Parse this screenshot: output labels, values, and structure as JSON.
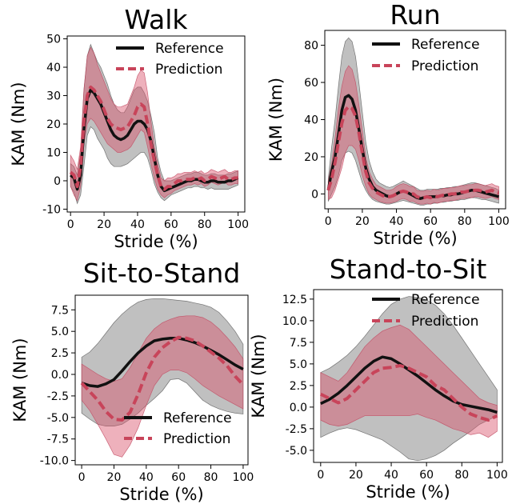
{
  "colors": {
    "reference": "#111111",
    "prediction": "#c8445a",
    "reference_band": "#8c8c8c",
    "prediction_band": "#d9536b"
  },
  "chart_data": [
    {
      "type": "line",
      "title": "Walk",
      "xlabel": "Stride (%)",
      "ylabel": "KAM (Nm)",
      "xlim": [
        -2,
        104
      ],
      "ylim": [
        -11,
        51
      ],
      "xticks": [
        0,
        20,
        40,
        60,
        80,
        100
      ],
      "yticks": [
        -10,
        0,
        10,
        20,
        30,
        40,
        50
      ],
      "legend_position": "top-right",
      "x": [
        0,
        2,
        4,
        6,
        8,
        10,
        12,
        14,
        16,
        18,
        20,
        22,
        24,
        26,
        28,
        30,
        32,
        34,
        36,
        38,
        40,
        42,
        44,
        46,
        48,
        50,
        52,
        54,
        56,
        58,
        60,
        62,
        64,
        66,
        68,
        70,
        72,
        74,
        76,
        78,
        80,
        82,
        84,
        86,
        88,
        90,
        92,
        94,
        96,
        98,
        100
      ],
      "series": [
        {
          "name": "Reference",
          "values": [
            2,
            1,
            -3,
            2,
            18,
            29,
            32,
            31,
            29,
            27,
            24,
            21,
            18,
            16,
            15,
            14.5,
            15,
            16,
            18,
            20,
            21,
            21,
            20,
            18,
            14,
            8,
            2,
            -2,
            -3.5,
            -3,
            -2.5,
            -2,
            -1.5,
            -1,
            -0.5,
            0,
            0,
            0.5,
            0.5,
            0,
            -0.5,
            -0.5,
            0,
            0,
            -0.5,
            -0.5,
            -0.5,
            0,
            0,
            0.5,
            1
          ],
          "lower": [
            -2,
            -4,
            -8,
            -5,
            5,
            16,
            19,
            18,
            15,
            13,
            11,
            8,
            6,
            5,
            5,
            5,
            5.5,
            6,
            7,
            8,
            9,
            10,
            10,
            8,
            4,
            -1,
            -4,
            -6,
            -7,
            -6,
            -5,
            -4.5,
            -4,
            -3.5,
            -3,
            -2.5,
            -2.5,
            -2,
            -2,
            -2.5,
            -2.5,
            -3,
            -2.5,
            -3,
            -3,
            -3,
            -3,
            -3,
            -2.5,
            -2,
            -1.5
          ],
          "upper": [
            6,
            5,
            2,
            10,
            32,
            44,
            48,
            45,
            42,
            40,
            37,
            34,
            30,
            27,
            25,
            24,
            24,
            26,
            29,
            32,
            33,
            33,
            31,
            28,
            23,
            17,
            8,
            3,
            0,
            0,
            0,
            0.5,
            1,
            1.5,
            2,
            2.5,
            2.5,
            3,
            3,
            2.5,
            2,
            2,
            2.5,
            2.5,
            2,
            2,
            2,
            2.5,
            2.5,
            3,
            3.5
          ]
        },
        {
          "name": "Prediction",
          "values": [
            3,
            2,
            -2,
            5,
            21,
            30,
            33,
            32,
            30,
            28,
            25,
            22,
            20,
            19,
            18.5,
            18,
            18.5,
            19,
            21,
            23,
            26,
            27,
            26,
            20,
            13,
            7,
            2,
            -2,
            -3,
            -2,
            -2,
            -1,
            0,
            0,
            0.5,
            0.5,
            0.5,
            1,
            0.5,
            1,
            0,
            0.5,
            1.5,
            1,
            0.5,
            1,
            1.5,
            0.5,
            0.5,
            1,
            1
          ],
          "lower": [
            -2,
            -5,
            -7,
            -2,
            13,
            20,
            22,
            21,
            19,
            17,
            15,
            13,
            12,
            11,
            10,
            10,
            10.5,
            11,
            12,
            14,
            16,
            18,
            17,
            12,
            6,
            1,
            -3,
            -5,
            -6,
            -5,
            -4.5,
            -3.5,
            -3,
            -2.5,
            -2,
            -1.5,
            -1.5,
            -1,
            -1.5,
            -1,
            -2,
            -1.5,
            -0.5,
            -1,
            -1.5,
            -1,
            -0.5,
            -1.5,
            -1.5,
            -1,
            -1
          ],
          "upper": [
            9,
            7,
            4,
            12,
            32,
            44,
            47,
            45,
            41,
            38,
            35,
            32,
            29,
            27,
            26,
            26,
            26.5,
            27,
            30,
            33,
            37,
            39,
            38,
            31,
            21,
            12,
            6,
            1,
            0,
            1,
            1,
            1.5,
            2.5,
            2.5,
            3,
            3,
            3,
            3.5,
            3,
            3.5,
            2.5,
            3,
            4,
            3.5,
            3,
            3.5,
            4,
            3,
            3,
            3.5,
            3.5
          ]
        }
      ]
    },
    {
      "type": "line",
      "title": "Run",
      "xlabel": "Stride (%)",
      "ylabel": "KAM (Nm)",
      "xlim": [
        -2,
        104
      ],
      "ylim": [
        -8,
        88
      ],
      "xticks": [
        0,
        20,
        40,
        60,
        80,
        100
      ],
      "yticks": [
        0,
        20,
        40,
        60,
        80
      ],
      "legend_position": "top-right",
      "x": [
        0,
        2,
        4,
        6,
        8,
        10,
        12,
        14,
        16,
        18,
        20,
        22,
        24,
        26,
        28,
        30,
        32,
        34,
        36,
        38,
        40,
        42,
        44,
        46,
        48,
        50,
        52,
        54,
        56,
        58,
        60,
        62,
        64,
        66,
        68,
        70,
        72,
        74,
        76,
        78,
        80,
        82,
        84,
        86,
        88,
        90,
        92,
        94,
        96,
        98,
        100
      ],
      "series": [
        {
          "name": "Reference",
          "values": [
            2,
            12,
            20,
            32,
            45,
            52,
            53,
            51,
            45,
            35,
            24,
            14,
            8,
            4,
            2,
            1,
            0,
            -1,
            -1.5,
            -1,
            0,
            1,
            1.5,
            1,
            0,
            -1,
            -2,
            -2.5,
            -2,
            -1.5,
            -1.5,
            -1.5,
            -1.5,
            -1,
            -1,
            -0.5,
            -0.5,
            0,
            0,
            0.5,
            1,
            1.5,
            2,
            2,
            1.5,
            1,
            0.5,
            0,
            -0.5,
            -1,
            -1.5
          ],
          "lower": [
            -4,
            0,
            4,
            10,
            18,
            22,
            23,
            22,
            18,
            12,
            6,
            2,
            -1,
            -3,
            -4,
            -4.5,
            -5,
            -5.5,
            -5.5,
            -5,
            -4.5,
            -4,
            -3.5,
            -4,
            -4.5,
            -5,
            -5.5,
            -6,
            -6,
            -5.5,
            -5.5,
            -5,
            -5,
            -4.5,
            -4.5,
            -4,
            -4,
            -3.5,
            -3.5,
            -3,
            -3,
            -2.5,
            -2,
            -2,
            -2.5,
            -3,
            -3,
            -3.5,
            -4,
            -4.5,
            -5
          ],
          "upper": [
            8,
            25,
            40,
            58,
            74,
            82,
            84,
            82,
            74,
            60,
            44,
            28,
            18,
            12,
            8,
            6,
            5,
            4,
            3.5,
            4,
            5,
            6,
            7,
            6,
            5,
            4,
            3,
            2,
            2,
            2.5,
            2.5,
            2.5,
            2.5,
            3,
            3,
            3.5,
            3.5,
            4,
            4,
            4.5,
            5,
            5.5,
            6,
            6,
            5.5,
            5,
            4.5,
            4,
            3.5,
            3,
            2
          ]
        },
        {
          "name": "Prediction",
          "values": [
            2,
            8,
            17,
            28,
            38,
            45,
            47,
            46,
            42,
            33,
            22,
            12,
            6,
            3,
            1,
            0,
            -1,
            -1.5,
            -1.5,
            -1,
            0,
            1,
            1.5,
            1,
            0,
            0,
            -1.5,
            -2,
            -2,
            -1.5,
            -2,
            -1,
            -1.5,
            -1,
            -0.5,
            -0.5,
            0,
            0,
            0.5,
            1,
            1,
            1.5,
            1.5,
            2,
            2,
            1.5,
            1,
            1.5,
            2,
            1,
            0.5
          ],
          "lower": [
            -3,
            -2,
            2,
            8,
            14,
            22,
            26,
            26,
            24,
            18,
            10,
            4,
            0,
            -2,
            -3,
            -4,
            -4.5,
            -5,
            -5,
            -4.5,
            -4,
            -3,
            -2.5,
            -3,
            -4,
            -4,
            -5,
            -5.5,
            -5.5,
            -5,
            -5.5,
            -4.5,
            -5,
            -4.5,
            -4,
            -4,
            -3.5,
            -3.5,
            -3,
            -2.5,
            -2.5,
            -2,
            -2,
            -1.5,
            -1.5,
            -2,
            -2.5,
            -2,
            -1.5,
            -2.5,
            -3
          ],
          "upper": [
            7,
            16,
            30,
            46,
            58,
            66,
            69,
            67,
            60,
            48,
            34,
            20,
            12,
            8,
            5,
            4,
            3,
            2,
            2,
            2.5,
            4,
            5,
            5.5,
            5,
            4,
            4,
            2,
            1.5,
            1.5,
            2,
            1.5,
            2.5,
            2,
            2.5,
            3,
            3,
            3.5,
            3.5,
            4,
            4.5,
            4.5,
            5,
            5,
            5.5,
            5.5,
            5,
            4.5,
            5,
            5.5,
            4.5,
            4
          ]
        }
      ]
    },
    {
      "type": "line",
      "title": "Sit-to-Stand",
      "xlabel": "Stride (%)",
      "ylabel": "KAM (Nm)",
      "xlim": [
        -4,
        103
      ],
      "ylim": [
        -10.5,
        9.2
      ],
      "xticks": [
        0,
        20,
        40,
        60,
        80,
        100
      ],
      "yticks": [
        -10.0,
        -7.5,
        -5.0,
        -2.5,
        0.0,
        2.5,
        5.0,
        7.5
      ],
      "legend_position": "bottom-right",
      "x": [
        0,
        5,
        10,
        15,
        20,
        25,
        30,
        35,
        40,
        45,
        50,
        55,
        60,
        65,
        70,
        75,
        80,
        85,
        90,
        95,
        100
      ],
      "series": [
        {
          "name": "Reference",
          "values": [
            -1,
            -1.3,
            -1.4,
            -1.1,
            -0.6,
            0.4,
            1.5,
            2.5,
            3.3,
            3.9,
            4.1,
            4.2,
            4.2,
            4.0,
            3.7,
            3.3,
            2.8,
            2.3,
            1.7,
            1.1,
            0.6
          ],
          "lower": [
            -4.5,
            -5.2,
            -5.8,
            -6.0,
            -6.0,
            -5.8,
            -5.2,
            -4.5,
            -3.6,
            -2.8,
            -1.9,
            -0.6,
            -0.5,
            -1.0,
            -2.0,
            -3.0,
            -3.6,
            -4.0,
            -4.3,
            -4.5,
            -4.6
          ],
          "upper": [
            2.0,
            2.6,
            3.6,
            4.8,
            6.0,
            7.0,
            7.8,
            8.4,
            8.7,
            8.8,
            8.8,
            8.7,
            8.6,
            8.5,
            8.3,
            8.1,
            7.8,
            7.2,
            6.2,
            5.0,
            3.5
          ]
        },
        {
          "name": "Prediction",
          "values": [
            -1,
            -2,
            -3,
            -4.3,
            -5.2,
            -5.3,
            -4.4,
            -2.3,
            0.2,
            2.0,
            3.1,
            3.8,
            4.3,
            4.2,
            3.9,
            3.3,
            2.6,
            1.9,
            1.0,
            -0.2,
            -1.2
          ],
          "lower": [
            -3,
            -4.2,
            -5.8,
            -7.5,
            -9.3,
            -9.6,
            -8.2,
            -6.2,
            -3.6,
            -1.3,
            0,
            0.5,
            0.5,
            0.2,
            -0.5,
            -1.3,
            -1.9,
            -2.5,
            -3.0,
            -3.5,
            -4.0
          ],
          "upper": [
            1.2,
            0.6,
            0,
            -0.5,
            -0.8,
            -0.5,
            0.8,
            2.5,
            4.2,
            5.3,
            6.0,
            6.4,
            6.7,
            6.8,
            6.8,
            6.6,
            6.1,
            5.3,
            4.3,
            3.2,
            1.8
          ]
        }
      ]
    },
    {
      "type": "line",
      "title": "Stand-to-Sit",
      "xlabel": "Stride (%)",
      "ylabel": "KAM (Nm)",
      "xlim": [
        -4,
        103
      ],
      "ylim": [
        -6.4,
        13.6
      ],
      "xticks": [
        0,
        20,
        40,
        60,
        80,
        100
      ],
      "yticks": [
        -5.0,
        -2.5,
        0.0,
        2.5,
        5.0,
        7.5,
        10.0,
        12.5
      ],
      "legend_position": "top-right",
      "x": [
        0,
        5,
        10,
        15,
        20,
        25,
        30,
        35,
        40,
        45,
        50,
        55,
        60,
        65,
        70,
        75,
        80,
        85,
        90,
        95,
        100
      ],
      "series": [
        {
          "name": "Reference",
          "values": [
            0.4,
            0.9,
            1.6,
            2.5,
            3.5,
            4.5,
            5.3,
            5.8,
            5.6,
            5.0,
            4.3,
            3.6,
            2.8,
            2.0,
            1.3,
            0.7,
            0.3,
            0.1,
            -0.1,
            -0.3,
            -0.6
          ],
          "lower": [
            -3.5,
            -3.0,
            -2.6,
            -2.4,
            -2.6,
            -3.0,
            -3.4,
            -3.8,
            -4.5,
            -5.2,
            -6.0,
            -6.2,
            -6.0,
            -5.6,
            -5.0,
            -4.2,
            -3.5,
            -2.8,
            -2.0,
            -1.5,
            -1.0
          ],
          "upper": [
            4.0,
            4.5,
            5.2,
            6.0,
            7.0,
            8.2,
            9.5,
            10.8,
            11.9,
            12.5,
            12.8,
            12.7,
            12.4,
            11.8,
            10.8,
            9.5,
            8.0,
            6.5,
            5.0,
            3.5,
            2.0
          ]
        },
        {
          "name": "Prediction",
          "values": [
            1.5,
            1.0,
            0.5,
            1.0,
            2.0,
            3.0,
            4.0,
            4.5,
            4.6,
            4.8,
            4.5,
            4.0,
            3.5,
            2.5,
            2.0,
            1.0,
            0,
            -0.8,
            -1.2,
            -1.5,
            -1.0
          ],
          "lower": [
            -1.5,
            -2.0,
            -2.2,
            -2.0,
            -1.5,
            -1.0,
            -1.0,
            -1.0,
            -1.0,
            -1.0,
            -1.0,
            -0.8,
            -1.2,
            -1.5,
            -2.0,
            -2.5,
            -2.8,
            -3.2,
            -3.0,
            -3.5,
            -2.8
          ],
          "upper": [
            4.0,
            3.5,
            3.0,
            4.0,
            5.5,
            7.0,
            8.0,
            8.8,
            9.2,
            9.5,
            9.0,
            8.0,
            7.0,
            6.0,
            5.0,
            4.0,
            3.0,
            2.0,
            1.0,
            0.5,
            0.2
          ]
        }
      ]
    }
  ]
}
